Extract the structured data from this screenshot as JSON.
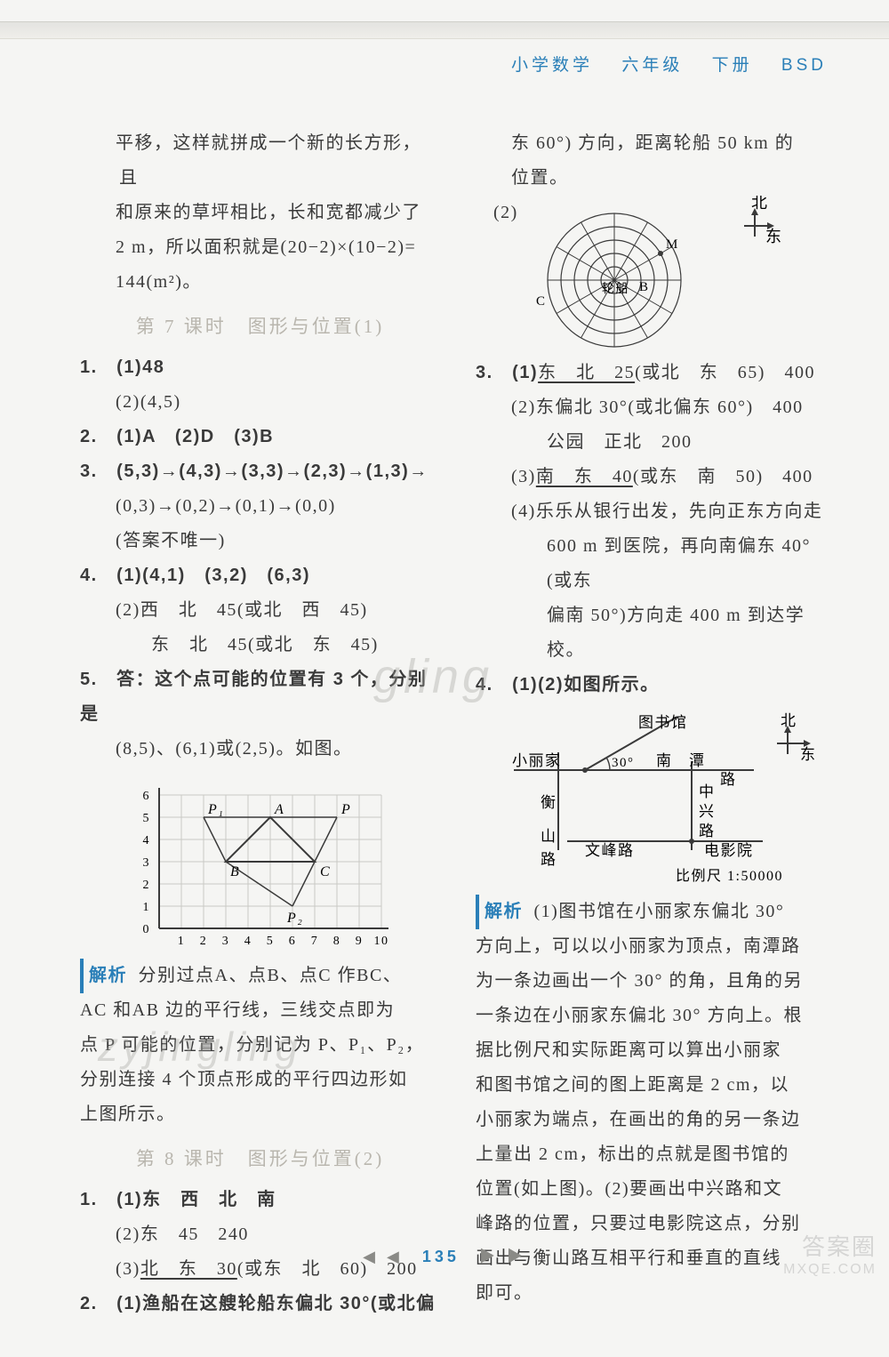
{
  "header": {
    "subject": "小学数学",
    "grade": "六年级",
    "volume": "下册",
    "code": "BSD"
  },
  "page_number": "135",
  "watermarks": {
    "w1": "gling",
    "w2": "zyjingling",
    "corner1": "答案圈",
    "corner2": "MXQE.COM"
  },
  "left": {
    "intro_l1": "平移，这样就拼成一个新的长方形，且",
    "intro_l2": "和原来的草坪相比，长和宽都减少了",
    "intro_l3": "2 m，所以面积就是(20−2)×(10−2)=",
    "intro_l4": "144(m²)。",
    "lesson7": "第 7 课时　图形与位置(1)",
    "q1_1": "1.　(1)48",
    "q1_2": "(2)(4,5)",
    "q2": "2.　(1)A　(2)D　(3)B",
    "q3_1": "3.　(5,3)→(4,3)→(3,3)→(2,3)→(1,3)→",
    "q3_2": "(0,3)→(0,2)→(0,1)→(0,0)",
    "q3_3": "(答案不唯一)",
    "q4_1": "4.　(1)(4,1)　(3,2)　(6,3)",
    "q4_2": "(2)西　北　45(或北　西　45)",
    "q4_3": "东　北　45(或北　东　45)",
    "q5_1": "5.　答：这个点可能的位置有 3 个，分别是",
    "q5_2": "(8,5)、(6,1)或(2,5)。如图。",
    "grid": {
      "xticks": [
        "1",
        "2",
        "3",
        "4",
        "5",
        "6",
        "7",
        "8",
        "9",
        "10"
      ],
      "yticks": [
        "0",
        "1",
        "2",
        "3",
        "4",
        "5",
        "6"
      ],
      "labels": {
        "P1": "P₁",
        "A": "A",
        "P": "P",
        "B": "B",
        "C": "C",
        "P2": "P₂"
      },
      "points": {
        "P1": [
          2,
          5
        ],
        "A": [
          5,
          5
        ],
        "P": [
          8,
          5
        ],
        "B": [
          3,
          3
        ],
        "C": [
          7,
          3
        ],
        "P2": [
          6,
          1
        ]
      },
      "colors": {
        "grid": "#c9c9c4",
        "axes": "#3a3a3a",
        "line": "#3a3a3a"
      }
    },
    "jiexi_label": "解析",
    "jiexi_l1": "分别过点A、点B、点C 作BC、",
    "jiexi_l2": "AC 和AB 边的平行线，三线交点即为",
    "jiexi_l3": "点 P 可能的位置，分别记为 P、P₁、P₂，",
    "jiexi_l4": "分别连接 4 个顶点形成的平行四边形如",
    "jiexi_l5": "上图所示。",
    "lesson8": "第 8 课时　图形与位置(2)",
    "b1_1": "1.　(1)东　西　北　南",
    "b1_2": "(2)东　45　240",
    "b1_3a": "(3)",
    "b1_3b": "北　东　30",
    "b1_3c": "(或东　北　60)　200",
    "b2": "2.　(1)渔船在这艘轮船东偏北 30°(或北偏"
  },
  "right": {
    "cont_l1": "东 60°) 方向，距离轮船 50 km 的",
    "cont_l2": "位置。",
    "q2_label": "(2)",
    "compass": {
      "north": "北",
      "east": "东",
      "center": "轮船",
      "M": "M",
      "B": "B",
      "C": "C",
      "rings": 5,
      "axis_color": "#3a3a3a",
      "ring_color": "#3a3a3a"
    },
    "q3_1a": "3.　(1)",
    "q3_1b": "东　北　25",
    "q3_1c": "(或北　东　65)　400",
    "q3_2": "(2)东偏北 30°(或北偏东 60°)　400",
    "q3_2b": "公园　正北　200",
    "q3_3a": "(3)",
    "q3_3b": "南　东　40",
    "q3_3c": "(或东　南　50)　400",
    "q3_4a": "(4)乐乐从银行出发，先向正东方向走",
    "q3_4b": "600 m 到医院，再向南偏东 40°(或东",
    "q3_4c": "偏南 50°)方向走 400 m 到达学校。",
    "q4": "4.　(1)(2)如图所示。",
    "map": {
      "labels": {
        "library": "图书馆",
        "north": "北",
        "east": "东",
        "home": "小丽家",
        "angle": "30°",
        "nantan": "南　潭",
        "lu": "路",
        "zhong": "中",
        "xing": "兴",
        "heng": "衡",
        "shan": "山",
        "wenfeng": "文峰路",
        "cinema": "电影院",
        "scale": "比例尺 1:50000"
      },
      "colors": {
        "line": "#3a3a3a"
      }
    },
    "jiexi_label": "解析",
    "jx_l1": "(1)图书馆在小丽家东偏北 30°",
    "jx_l2": "方向上，可以以小丽家为顶点，南潭路",
    "jx_l3": "为一条边画出一个 30° 的角，且角的另",
    "jx_l4": "一条边在小丽家东偏北 30° 方向上。根",
    "jx_l5": "据比例尺和实际距离可以算出小丽家",
    "jx_l6": "和图书馆之间的图上距离是 2 cm，以",
    "jx_l7": "小丽家为端点，在画出的角的另一条边",
    "jx_l8": "上量出 2 cm，标出的点就是图书馆的",
    "jx_l9": "位置(如上图)。(2)要画出中兴路和文",
    "jx_l10": "峰路的位置，只要过电影院这点，分别",
    "jx_l11": "画出与衡山路互相平行和垂直的直线",
    "jx_l12": "即可。"
  }
}
